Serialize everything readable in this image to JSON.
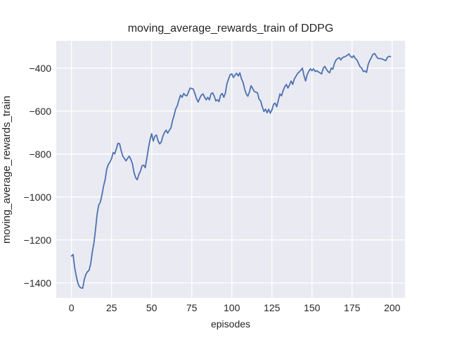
{
  "chart_data": {
    "type": "line",
    "title": "moving_average_rewards_train of DDPG",
    "xlabel": "episodes",
    "ylabel": "moving_average_rewards_train",
    "grid": true,
    "legend": false,
    "xlim": [
      -9.5,
      208
    ],
    "ylim": [
      -1470,
      -273
    ],
    "xticks": [
      0,
      25,
      50,
      75,
      100,
      125,
      150,
      175,
      200
    ],
    "yticks": [
      -400,
      -600,
      -800,
      -1000,
      -1200,
      -1400
    ],
    "xtick_labels": [
      "0",
      "25",
      "50",
      "75",
      "100",
      "125",
      "150",
      "175",
      "200"
    ],
    "ytick_labels": [
      "−400",
      "−600",
      "−800",
      "−1000",
      "−1200",
      "−1400"
    ],
    "colors": {
      "line": "#4c72b0",
      "axes_background": "#eaeaf2",
      "grid": "#ffffff",
      "text": "#262626",
      "figure_background": "#ffffff"
    },
    "series": [
      {
        "name": "moving_average_rewards_train",
        "x_start": 0,
        "x_step": 1,
        "values": [
          -1275,
          -1268,
          -1330,
          -1370,
          -1402,
          -1418,
          -1424,
          -1425,
          -1384,
          -1360,
          -1348,
          -1341,
          -1310,
          -1255,
          -1215,
          -1150,
          -1080,
          -1037,
          -1025,
          -990,
          -950,
          -919,
          -870,
          -848,
          -837,
          -821,
          -793,
          -799,
          -775,
          -750,
          -752,
          -785,
          -810,
          -821,
          -832,
          -820,
          -810,
          -825,
          -845,
          -886,
          -910,
          -920,
          -895,
          -880,
          -855,
          -852,
          -864,
          -820,
          -772,
          -733,
          -706,
          -740,
          -717,
          -712,
          -739,
          -753,
          -744,
          -717,
          -700,
          -689,
          -703,
          -690,
          -679,
          -645,
          -620,
          -590,
          -575,
          -548,
          -526,
          -536,
          -518,
          -527,
          -529,
          -510,
          -493,
          -495,
          -498,
          -520,
          -542,
          -558,
          -540,
          -526,
          -520,
          -535,
          -548,
          -536,
          -548,
          -520,
          -515,
          -530,
          -553,
          -547,
          -556,
          -526,
          -518,
          -536,
          -515,
          -471,
          -450,
          -430,
          -427,
          -444,
          -432,
          -424,
          -437,
          -422,
          -450,
          -466,
          -498,
          -520,
          -531,
          -510,
          -482,
          -495,
          -509,
          -512,
          -515,
          -545,
          -553,
          -580,
          -602,
          -591,
          -608,
          -591,
          -610,
          -595,
          -569,
          -563,
          -580,
          -550,
          -520,
          -529,
          -505,
          -487,
          -476,
          -493,
          -478,
          -460,
          -476,
          -450,
          -438,
          -425,
          -418,
          -410,
          -400,
          -435,
          -460,
          -430,
          -415,
          -403,
          -412,
          -403,
          -416,
          -412,
          -418,
          -422,
          -427,
          -400,
          -392,
          -405,
          -416,
          -422,
          -400,
          -405,
          -378,
          -362,
          -355,
          -351,
          -362,
          -351,
          -348,
          -345,
          -340,
          -334,
          -345,
          -351,
          -342,
          -355,
          -362,
          -378,
          -394,
          -400,
          -416,
          -413,
          -420,
          -384,
          -365,
          -351,
          -336,
          -332,
          -343,
          -354,
          -356,
          -356,
          -358,
          -362,
          -365,
          -350,
          -345,
          -347
        ]
      }
    ]
  }
}
